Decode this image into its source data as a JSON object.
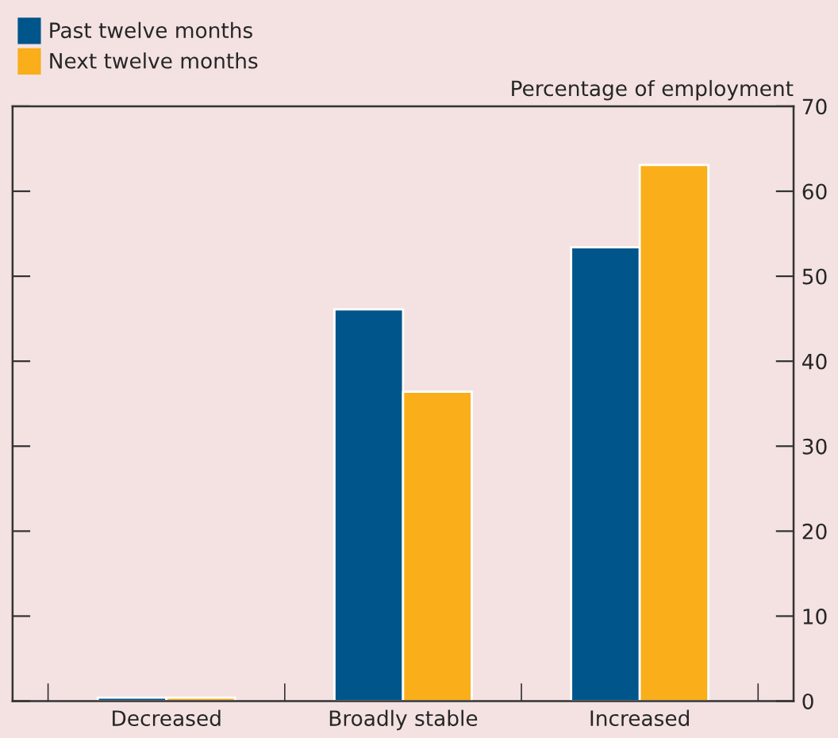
{
  "chart_data": {
    "type": "bar",
    "ylabel": "Percentage of employment",
    "categories": [
      "Decreased",
      "Broadly stable",
      "Increased"
    ],
    "series": [
      {
        "name": "Past twelve months",
        "color": "#00558b",
        "values": [
          0.4,
          46.1,
          53.4
        ]
      },
      {
        "name": "Next twelve months",
        "color": "#f9ae1a",
        "values": [
          0.4,
          36.4,
          63.1
        ]
      }
    ],
    "ylim": [
      0,
      70
    ],
    "yticks": [
      0,
      10,
      20,
      30,
      40,
      50,
      60,
      70
    ],
    "grid": false,
    "legend": "top left"
  }
}
